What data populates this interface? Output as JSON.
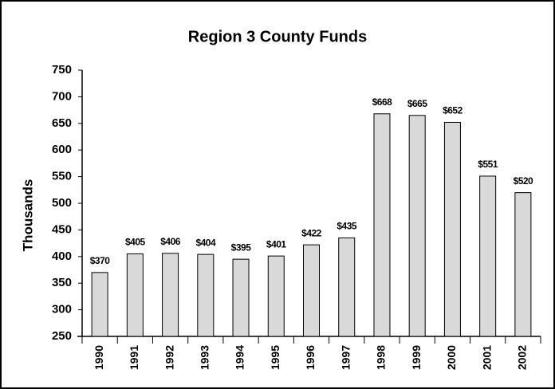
{
  "chart_data": {
    "type": "bar",
    "title": "Region 3 County Funds",
    "y_label": "Thousands",
    "categories": [
      "1990",
      "1991",
      "1992",
      "1993",
      "1994",
      "1995",
      "1996",
      "1997",
      "1998",
      "1999",
      "2000",
      "2001",
      "2002"
    ],
    "values": [
      370,
      405,
      406,
      404,
      395,
      401,
      422,
      435,
      668,
      665,
      652,
      551,
      520
    ],
    "value_labels": [
      "$370",
      "$405",
      "$406",
      "$404",
      "$395",
      "$401",
      "$422",
      "$435",
      "$668",
      "$665",
      "$652",
      "$551",
      "$520"
    ],
    "color": "#d9d9d9",
    "ylim": [
      250,
      750
    ],
    "yticks": [
      250,
      300,
      350,
      400,
      450,
      500,
      550,
      600,
      650,
      700,
      750
    ],
    "grid": false
  }
}
